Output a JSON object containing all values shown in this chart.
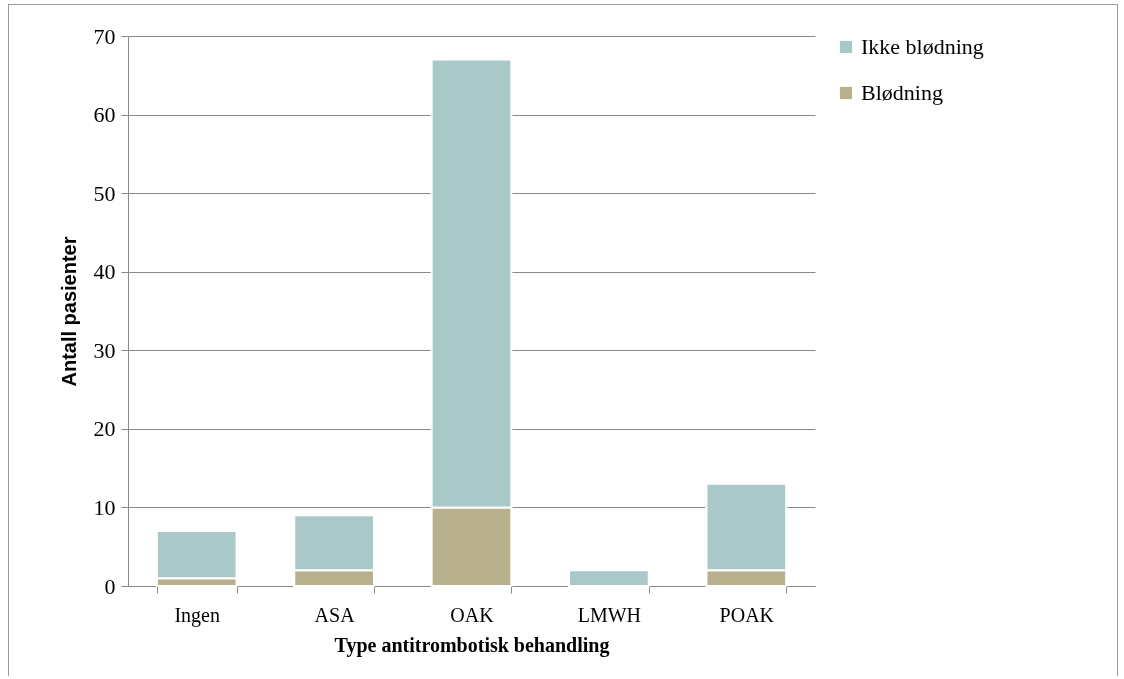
{
  "chart_data": {
    "type": "bar",
    "stacked": true,
    "xlabel": "Type antitrombotisk behandling",
    "ylabel": "Antall pasienter",
    "categories": [
      "Ingen",
      "ASA",
      "OAK",
      "LMWH",
      "POAK"
    ],
    "series": [
      {
        "name": "Blødning",
        "color": "#b8b08c",
        "values": [
          1,
          2,
          10,
          0,
          2
        ]
      },
      {
        "name": "Ikke blødning",
        "color": "#a9c8c8",
        "values": [
          6,
          7,
          57,
          2,
          11
        ]
      }
    ],
    "ylim": [
      0,
      70
    ],
    "yticks": [
      0,
      10,
      20,
      30,
      40,
      50,
      60,
      70
    ],
    "grid": "y",
    "legend": "right"
  }
}
